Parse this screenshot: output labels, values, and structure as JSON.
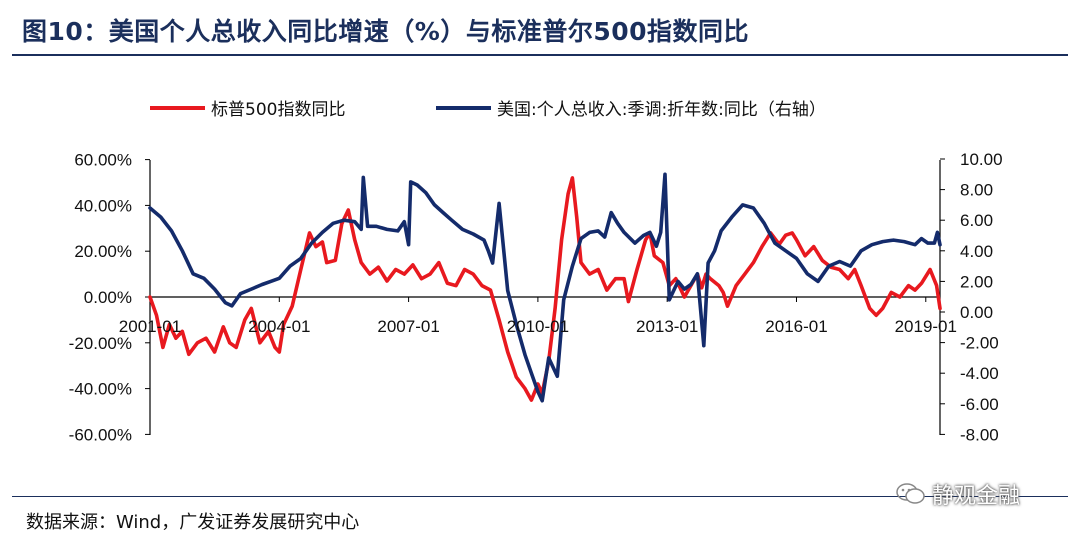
{
  "title": "图10：美国个人总收入同比增速（%）与标准普尔500指数同比",
  "source": "数据来源：Wind，广发证券发展研究中心",
  "watermark": "静观金融",
  "chart_data": {
    "type": "line",
    "x_start": 2001.0,
    "x_end": 2019.33,
    "xtick_labels": [
      "2001-01",
      "2004-01",
      "2007-01",
      "2010-01",
      "2013-01",
      "2016-01",
      "2019-01"
    ],
    "xtick_values": [
      2001,
      2004,
      2007,
      2010,
      2013,
      2016,
      2019
    ],
    "left_axis": {
      "min": -60,
      "max": 60,
      "step": 20,
      "tick_labels": [
        "60.00%",
        "40.00%",
        "20.00%",
        "0.00%",
        "-20.00%",
        "-40.00%",
        "-60.00%"
      ]
    },
    "right_axis": {
      "min": -8,
      "max": 10,
      "step": 2,
      "tick_labels": [
        "10.00",
        "8.00",
        "6.00",
        "4.00",
        "2.00",
        "0.00",
        "-2.00",
        "-4.00",
        "-6.00",
        "-8.00"
      ]
    },
    "series": [
      {
        "name": "标普500指数同比",
        "axis": "left",
        "color": "#e8191f",
        "points": [
          [
            2001.0,
            0
          ],
          [
            2001.15,
            -8
          ],
          [
            2001.3,
            -22
          ],
          [
            2001.45,
            -12
          ],
          [
            2001.6,
            -18
          ],
          [
            2001.75,
            -15
          ],
          [
            2001.9,
            -25
          ],
          [
            2002.1,
            -20
          ],
          [
            2002.3,
            -18
          ],
          [
            2002.5,
            -24
          ],
          [
            2002.7,
            -13
          ],
          [
            2002.85,
            -20
          ],
          [
            2003.0,
            -22
          ],
          [
            2003.2,
            -10
          ],
          [
            2003.35,
            -5
          ],
          [
            2003.55,
            -20
          ],
          [
            2003.75,
            -15
          ],
          [
            2003.9,
            -22
          ],
          [
            2004.0,
            -24
          ],
          [
            2004.1,
            -12
          ],
          [
            2004.3,
            -4
          ],
          [
            2004.5,
            12
          ],
          [
            2004.7,
            28
          ],
          [
            2004.85,
            22
          ],
          [
            2005.0,
            24
          ],
          [
            2005.1,
            15
          ],
          [
            2005.3,
            16
          ],
          [
            2005.45,
            32
          ],
          [
            2005.6,
            38
          ],
          [
            2005.75,
            25
          ],
          [
            2005.9,
            15
          ],
          [
            2006.1,
            10
          ],
          [
            2006.3,
            13
          ],
          [
            2006.5,
            7
          ],
          [
            2006.7,
            12
          ],
          [
            2006.9,
            10
          ],
          [
            2007.1,
            14
          ],
          [
            2007.3,
            8
          ],
          [
            2007.5,
            10
          ],
          [
            2007.7,
            15
          ],
          [
            2007.9,
            6
          ],
          [
            2008.1,
            5
          ],
          [
            2008.3,
            12
          ],
          [
            2008.5,
            10
          ],
          [
            2008.7,
            5
          ],
          [
            2008.9,
            3
          ],
          [
            2009.1,
            -10
          ],
          [
            2009.3,
            -24
          ],
          [
            2009.5,
            -35
          ],
          [
            2009.7,
            -40
          ],
          [
            2009.85,
            -45
          ],
          [
            2010.0,
            -38
          ],
          [
            2010.1,
            -42
          ],
          [
            2010.25,
            -28
          ],
          [
            2010.4,
            -5
          ],
          [
            2010.55,
            25
          ],
          [
            2010.7,
            45
          ],
          [
            2010.8,
            52
          ],
          [
            2010.9,
            35
          ],
          [
            2011.0,
            15
          ],
          [
            2011.2,
            10
          ],
          [
            2011.4,
            12
          ],
          [
            2011.6,
            3
          ],
          [
            2011.8,
            8
          ],
          [
            2012.0,
            8
          ],
          [
            2012.1,
            -2
          ],
          [
            2012.3,
            12
          ],
          [
            2012.5,
            25
          ],
          [
            2012.6,
            28
          ],
          [
            2012.7,
            18
          ],
          [
            2012.9,
            15
          ],
          [
            2013.05,
            5
          ],
          [
            2013.2,
            8
          ],
          [
            2013.4,
            0
          ],
          [
            2013.55,
            5
          ],
          [
            2013.7,
            10
          ],
          [
            2013.8,
            4
          ],
          [
            2013.9,
            10
          ],
          [
            2014.0,
            8
          ],
          [
            2014.2,
            5
          ],
          [
            2014.3,
            2
          ],
          [
            2014.4,
            -4
          ],
          [
            2014.6,
            5
          ],
          [
            2014.8,
            10
          ],
          [
            2015.0,
            15
          ],
          [
            2015.2,
            22
          ],
          [
            2015.4,
            28
          ],
          [
            2015.6,
            23
          ],
          [
            2015.75,
            27
          ],
          [
            2015.9,
            28
          ],
          [
            2016.0,
            25
          ],
          [
            2016.2,
            18
          ],
          [
            2016.4,
            22
          ],
          [
            2016.6,
            16
          ],
          [
            2016.8,
            13
          ],
          [
            2017.0,
            12
          ],
          [
            2017.2,
            8
          ],
          [
            2017.35,
            12
          ],
          [
            2017.5,
            5
          ],
          [
            2017.7,
            -5
          ],
          [
            2017.85,
            -8
          ],
          [
            2018.0,
            -5
          ],
          [
            2018.2,
            2
          ],
          [
            2018.4,
            0
          ],
          [
            2018.6,
            5
          ],
          [
            2018.75,
            3
          ],
          [
            2018.9,
            6
          ],
          [
            2019.1,
            12
          ],
          [
            2019.25,
            5
          ],
          [
            2019.33,
            -5
          ]
        ]
      },
      {
        "name": "美国:个人总收入:季调:折年数:同比（右轴）",
        "axis": "right",
        "color": "#142b6b",
        "points": [
          [
            2001.0,
            6.8
          ],
          [
            2001.25,
            6.2
          ],
          [
            2001.5,
            5.3
          ],
          [
            2001.75,
            4.0
          ],
          [
            2002.0,
            2.5
          ],
          [
            2002.25,
            2.2
          ],
          [
            2002.5,
            1.5
          ],
          [
            2002.75,
            0.6
          ],
          [
            2002.9,
            0.4
          ],
          [
            2003.1,
            1.2
          ],
          [
            2003.35,
            1.5
          ],
          [
            2003.6,
            1.8
          ],
          [
            2003.8,
            2.0
          ],
          [
            2004.0,
            2.2
          ],
          [
            2004.25,
            3.0
          ],
          [
            2004.5,
            3.5
          ],
          [
            2004.75,
            4.5
          ],
          [
            2005.0,
            5.2
          ],
          [
            2005.25,
            5.8
          ],
          [
            2005.5,
            6.0
          ],
          [
            2005.75,
            5.9
          ],
          [
            2005.9,
            5.4
          ],
          [
            2005.95,
            8.8
          ],
          [
            2006.05,
            5.6
          ],
          [
            2006.25,
            5.6
          ],
          [
            2006.5,
            5.4
          ],
          [
            2006.75,
            5.3
          ],
          [
            2006.9,
            5.9
          ],
          [
            2007.0,
            4.4
          ],
          [
            2007.05,
            8.5
          ],
          [
            2007.2,
            8.3
          ],
          [
            2007.4,
            7.8
          ],
          [
            2007.6,
            7.0
          ],
          [
            2007.8,
            6.5
          ],
          [
            2008.0,
            6.0
          ],
          [
            2008.25,
            5.4
          ],
          [
            2008.5,
            5.1
          ],
          [
            2008.75,
            4.7
          ],
          [
            2008.85,
            4.0
          ],
          [
            2008.95,
            3.2
          ],
          [
            2009.1,
            7.1
          ],
          [
            2009.3,
            1.4
          ],
          [
            2009.5,
            -0.8
          ],
          [
            2009.7,
            -2.8
          ],
          [
            2009.85,
            -4.0
          ],
          [
            2010.0,
            -5.2
          ],
          [
            2010.1,
            -5.8
          ],
          [
            2010.25,
            -3.0
          ],
          [
            2010.45,
            -4.2
          ],
          [
            2010.6,
            0.8
          ],
          [
            2010.8,
            3.0
          ],
          [
            2011.0,
            4.8
          ],
          [
            2011.2,
            5.2
          ],
          [
            2011.4,
            5.3
          ],
          [
            2011.55,
            4.9
          ],
          [
            2011.7,
            6.5
          ],
          [
            2011.85,
            5.8
          ],
          [
            2012.0,
            5.2
          ],
          [
            2012.25,
            4.5
          ],
          [
            2012.45,
            5.0
          ],
          [
            2012.6,
            5.2
          ],
          [
            2012.75,
            4.3
          ],
          [
            2012.85,
            5.2
          ],
          [
            2012.95,
            9.0
          ],
          [
            2013.05,
            0.8
          ],
          [
            2013.25,
            2.0
          ],
          [
            2013.4,
            1.5
          ],
          [
            2013.55,
            1.8
          ],
          [
            2013.7,
            2.5
          ],
          [
            2013.85,
            -2.2
          ],
          [
            2013.95,
            3.2
          ],
          [
            2014.1,
            4.0
          ],
          [
            2014.25,
            5.3
          ],
          [
            2014.5,
            6.2
          ],
          [
            2014.75,
            7.0
          ],
          [
            2015.0,
            6.8
          ],
          [
            2015.25,
            5.8
          ],
          [
            2015.5,
            4.5
          ],
          [
            2015.75,
            4.0
          ],
          [
            2016.0,
            3.5
          ],
          [
            2016.25,
            2.5
          ],
          [
            2016.5,
            2.0
          ],
          [
            2016.75,
            3.0
          ],
          [
            2017.0,
            3.3
          ],
          [
            2017.25,
            3.0
          ],
          [
            2017.5,
            4.0
          ],
          [
            2017.75,
            4.4
          ],
          [
            2018.0,
            4.6
          ],
          [
            2018.25,
            4.7
          ],
          [
            2018.5,
            4.6
          ],
          [
            2018.75,
            4.4
          ],
          [
            2018.9,
            4.8
          ],
          [
            2019.05,
            4.5
          ],
          [
            2019.2,
            4.5
          ],
          [
            2019.27,
            5.2
          ],
          [
            2019.33,
            4.4
          ]
        ]
      }
    ]
  }
}
